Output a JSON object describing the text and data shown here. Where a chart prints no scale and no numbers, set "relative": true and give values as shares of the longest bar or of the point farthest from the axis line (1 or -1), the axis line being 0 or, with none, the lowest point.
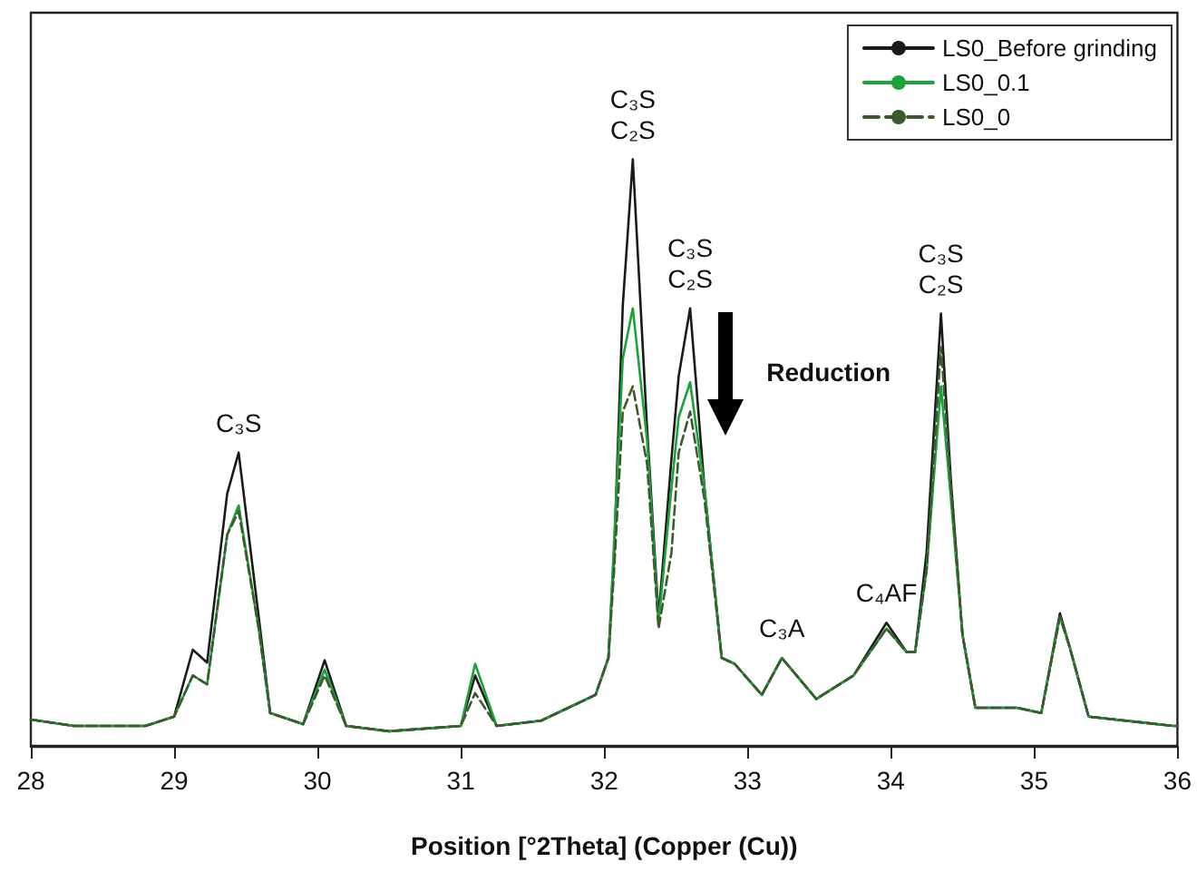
{
  "chart_data": {
    "type": "line",
    "xlabel": "Position [°2Theta] (Copper (Cu))",
    "relative": true,
    "xlim": [
      28,
      36
    ],
    "xticks": [
      28,
      29,
      30,
      31,
      32,
      33,
      34,
      35,
      36
    ],
    "tick_labels": "x",
    "legend": "top right",
    "marker": "none",
    "x": [
      28.0,
      28.3,
      28.8,
      29.0,
      29.13,
      29.23,
      29.37,
      29.45,
      29.59,
      29.67,
      29.9,
      30.05,
      30.2,
      30.5,
      31.0,
      31.1,
      31.25,
      31.56,
      31.94,
      32.03,
      32.07,
      32.13,
      32.2,
      32.3,
      32.38,
      32.47,
      32.52,
      32.6,
      32.7,
      32.82,
      32.91,
      33.1,
      33.24,
      33.48,
      33.74,
      33.97,
      34.11,
      34.17,
      34.25,
      34.35,
      34.42,
      34.5,
      34.59,
      34.88,
      35.05,
      35.18,
      35.25,
      35.38,
      35.97,
      36.0
    ],
    "series": [
      {
        "name": "LS0_Before grinding",
        "color": "#1a1a1a",
        "line_style": "solid",
        "values": [
          0.045,
          0.034,
          0.034,
          0.05,
          0.164,
          0.142,
          0.43,
          0.5,
          0.22,
          0.056,
          0.037,
          0.146,
          0.034,
          0.025,
          0.034,
          0.12,
          0.034,
          0.043,
          0.087,
          0.15,
          0.33,
          0.75,
          1.0,
          0.54,
          0.22,
          0.49,
          0.63,
          0.746,
          0.44,
          0.15,
          0.14,
          0.087,
          0.15,
          0.08,
          0.12,
          0.21,
          0.16,
          0.16,
          0.33,
          0.737,
          0.45,
          0.19,
          0.065,
          0.065,
          0.056,
          0.226,
          0.167,
          0.05,
          0.034,
          0.034
        ]
      },
      {
        "name": "LS0_0.1",
        "color": "#1aa33a",
        "line_style": "solid",
        "values": [
          0.045,
          0.034,
          0.034,
          0.05,
          0.12,
          0.105,
          0.36,
          0.41,
          0.2,
          0.056,
          0.037,
          0.13,
          0.034,
          0.025,
          0.034,
          0.14,
          0.034,
          0.043,
          0.087,
          0.15,
          0.35,
          0.66,
          0.746,
          0.52,
          0.21,
          0.44,
          0.56,
          0.62,
          0.44,
          0.15,
          0.14,
          0.087,
          0.15,
          0.08,
          0.12,
          0.2,
          0.16,
          0.16,
          0.3,
          0.613,
          0.42,
          0.19,
          0.065,
          0.065,
          0.056,
          0.22,
          0.167,
          0.05,
          0.034,
          0.034
        ]
      },
      {
        "name": "LS0_0",
        "color": "#3d5a2e",
        "line_style": "dashed",
        "values": [
          0.045,
          0.034,
          0.034,
          0.05,
          0.12,
          0.105,
          0.36,
          0.4,
          0.2,
          0.056,
          0.037,
          0.12,
          0.034,
          0.025,
          0.034,
          0.09,
          0.034,
          0.043,
          0.087,
          0.15,
          0.3,
          0.57,
          0.613,
          0.48,
          0.2,
          0.33,
          0.5,
          0.57,
          0.42,
          0.15,
          0.14,
          0.087,
          0.15,
          0.08,
          0.12,
          0.2,
          0.16,
          0.16,
          0.3,
          0.68,
          0.44,
          0.19,
          0.065,
          0.065,
          0.056,
          0.22,
          0.167,
          0.05,
          0.034,
          0.034
        ]
      }
    ],
    "annotations": [
      {
        "text": "C₃S",
        "x": 29.45,
        "y": 0.5
      },
      {
        "text": "C₃S\nC₂S",
        "x": 32.2,
        "y": 1.0
      },
      {
        "text": "C₃S\nC₂S",
        "x": 32.6,
        "y": 0.746
      },
      {
        "text": "C₃A",
        "x": 33.24,
        "y": 0.15
      },
      {
        "text": "C₄AF",
        "x": 33.97,
        "y": 0.21
      },
      {
        "text": "C₃S\nC₂S",
        "x": 34.35,
        "y": 0.737
      },
      "Reduction"
    ]
  }
}
